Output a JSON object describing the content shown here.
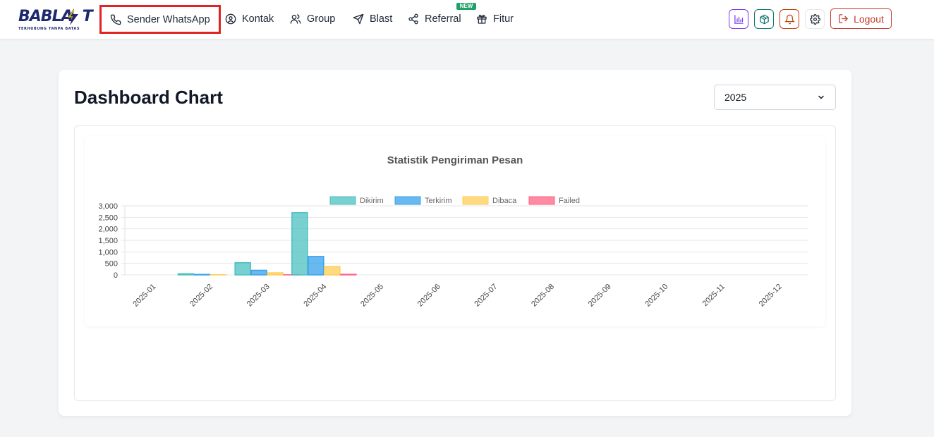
{
  "brand": {
    "name": "BABLAST",
    "name_part1": "BABLA",
    "name_part2": "T",
    "tagline": "TERHUBUNG TANPA BATAS"
  },
  "nav": {
    "items": [
      {
        "label": "Sender WhatsApp",
        "icon": "phone-icon"
      },
      {
        "label": "Kontak",
        "icon": "user-circle-icon"
      },
      {
        "label": "Group",
        "icon": "users-icon"
      },
      {
        "label": "Blast",
        "icon": "send-icon"
      },
      {
        "label": "Referral",
        "icon": "share-icon"
      },
      {
        "label": "Fitur",
        "icon": "gift-icon"
      }
    ],
    "new_badge": "NEW"
  },
  "actions": {
    "chart_icon": "bar-chart-icon",
    "package_icon": "package-icon",
    "notification_icon": "bell-icon",
    "settings_icon": "gear-icon",
    "logout_label": "Logout"
  },
  "colors": {
    "highlight": "#e02424",
    "brand": "#1e2a6e",
    "logout": "#c0392b",
    "new_badge": "#22a06b"
  },
  "page": {
    "title": "Dashboard Chart",
    "year_selected": "2025"
  },
  "chart_data": {
    "type": "bar",
    "title": "Statistik Pengiriman Pesan",
    "categories": [
      "2025-01",
      "2025-02",
      "2025-03",
      "2025-04",
      "2025-05",
      "2025-06",
      "2025-07",
      "2025-08",
      "2025-09",
      "2025-10",
      "2025-11",
      "2025-12"
    ],
    "series": [
      {
        "name": "Dikirim",
        "color": "#4bc0c0",
        "values": [
          0,
          50,
          530,
          2700,
          0,
          0,
          0,
          0,
          0,
          0,
          0,
          0
        ]
      },
      {
        "name": "Terkirim",
        "color": "#36a2eb",
        "values": [
          0,
          20,
          200,
          800,
          0,
          0,
          0,
          0,
          0,
          0,
          0,
          0
        ]
      },
      {
        "name": "Dibaca",
        "color": "#ffcd56",
        "values": [
          0,
          5,
          90,
          360,
          0,
          0,
          0,
          0,
          0,
          0,
          0,
          0
        ]
      },
      {
        "name": "Failed",
        "color": "#ff6384",
        "values": [
          0,
          0,
          5,
          25,
          0,
          0,
          0,
          0,
          0,
          0,
          0,
          0
        ]
      }
    ],
    "yticks": [
      "3,000",
      "2,500",
      "2,000",
      "1,500",
      "1,000",
      "500",
      "0"
    ],
    "ylim": [
      0,
      3000
    ],
    "legend_position": "top",
    "grid": true
  }
}
